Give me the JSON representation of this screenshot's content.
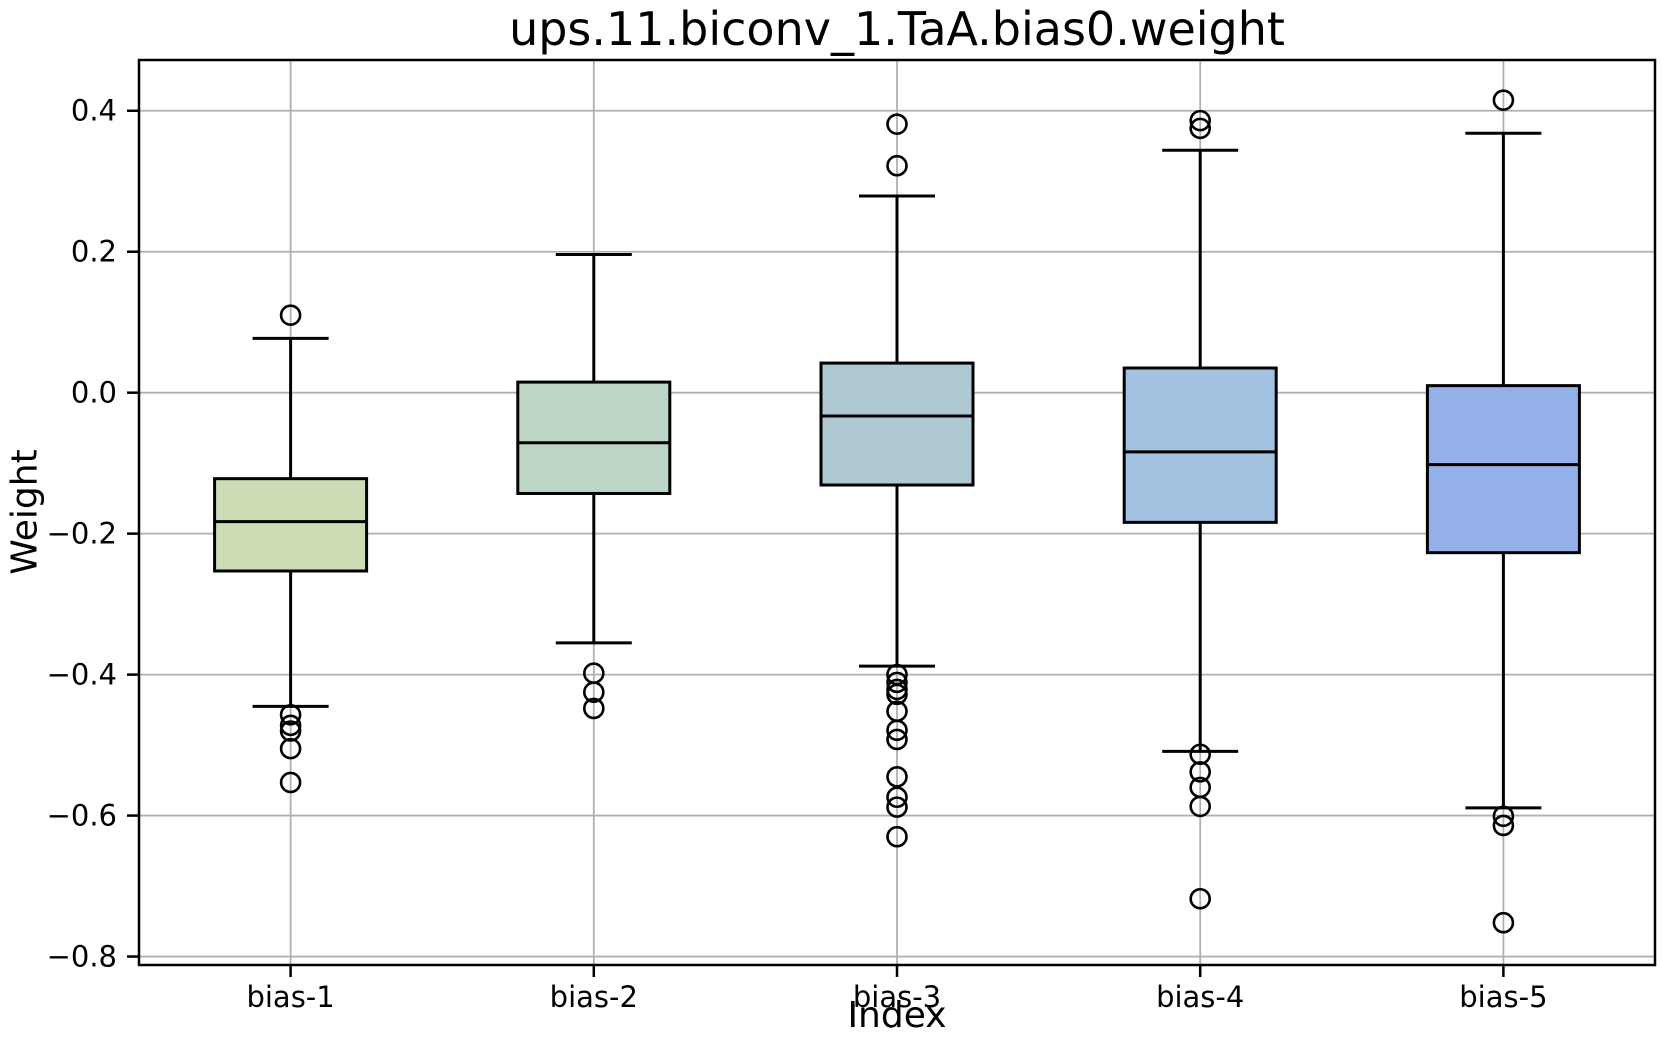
{
  "figure": {
    "title": "ups.11.biconv_1.TaA.bias0.weight",
    "xlabel": "Index",
    "ylabel": "Weight"
  },
  "chart_data": {
    "type": "boxplot",
    "title": "ups.11.biconv_1.TaA.bias0.weight",
    "xlabel": "Index",
    "ylabel": "Weight",
    "categories": [
      "bias-1",
      "bias-2",
      "bias-3",
      "bias-4",
      "bias-5"
    ],
    "yticks": [
      0.4,
      0.2,
      0.0,
      -0.2,
      -0.4,
      -0.6,
      -0.8
    ],
    "ytick_labels": [
      "0.4",
      "0.2",
      "0.0",
      "−0.2",
      "−0.4",
      "−0.6",
      "−0.8"
    ],
    "ylim": [
      -0.812,
      0.472
    ],
    "grid": true,
    "grid_color": "#b0b0b0",
    "edge_color": "#000000",
    "series": [
      {
        "name": "bias-1",
        "color": "#ccdcb4",
        "whisker_low": -0.445,
        "q1": -0.253,
        "median": -0.183,
        "q3": -0.122,
        "whisker_high": 0.077,
        "outliers": [
          0.11,
          -0.457,
          -0.472,
          -0.48,
          -0.505,
          -0.553
        ]
      },
      {
        "name": "bias-2",
        "color": "#bdd5c5",
        "whisker_low": -0.355,
        "q1": -0.143,
        "median": -0.071,
        "q3": 0.015,
        "whisker_high": 0.196,
        "outliers": [
          -0.398,
          -0.425,
          -0.448
        ]
      },
      {
        "name": "bias-3",
        "color": "#aec9d2",
        "whisker_low": -0.388,
        "q1": -0.131,
        "median": -0.033,
        "q3": 0.042,
        "whisker_high": 0.279,
        "outliers": [
          0.381,
          0.322,
          -0.4,
          -0.411,
          -0.421,
          -0.428,
          -0.452,
          -0.479,
          -0.492,
          -0.545,
          -0.574,
          -0.588,
          -0.63
        ]
      },
      {
        "name": "bias-4",
        "color": "#a3c1e0",
        "whisker_low": -0.509,
        "q1": -0.184,
        "median": -0.084,
        "q3": 0.035,
        "whisker_high": 0.344,
        "outliers": [
          0.386,
          0.375,
          -0.513,
          -0.538,
          -0.56,
          -0.587,
          -0.718
        ]
      },
      {
        "name": "bias-5",
        "color": "#93b1e8",
        "whisker_low": -0.589,
        "q1": -0.227,
        "median": -0.102,
        "q3": 0.01,
        "whisker_high": 0.368,
        "outliers": [
          0.415,
          -0.601,
          -0.614,
          -0.752
        ]
      }
    ]
  }
}
